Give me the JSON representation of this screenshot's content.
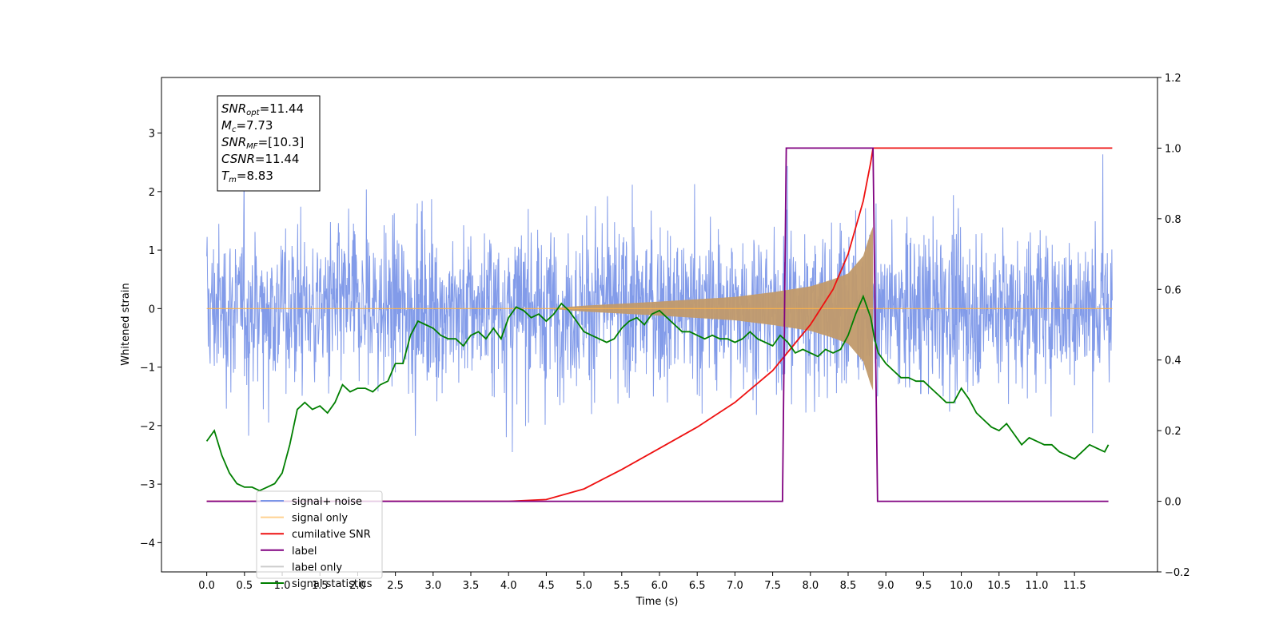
{
  "chart_data": {
    "type": "line",
    "title": "",
    "xlabel": "Time (s)",
    "ylabel": "Whitened strain",
    "y2label": "",
    "xlim": [
      -0.6,
      12.6
    ],
    "ylim": [
      -4.5,
      3.95
    ],
    "y2lim": [
      -0.2,
      1.2
    ],
    "grid": false,
    "legend_position": "bottom-left",
    "x_ticks": [
      "0.0",
      "0.5",
      "1.0",
      "1.5",
      "2.0",
      "2.5",
      "3.0",
      "3.5",
      "4.0",
      "4.5",
      "5.0",
      "5.5",
      "6.0",
      "6.5",
      "7.0",
      "7.5",
      "8.0",
      "8.5",
      "9.0",
      "9.5",
      "10.0",
      "10.5",
      "11.0",
      "11.5"
    ],
    "y_ticks": [
      "3",
      "2",
      "1",
      "0",
      "−1",
      "−2",
      "−3",
      "−4"
    ],
    "y2_ticks": [
      "1.2",
      "1.0",
      "0.8",
      "0.6",
      "0.4",
      "0.2",
      "0.0",
      "−0.2"
    ],
    "annotation": [
      {
        "base": "SNR",
        "sub": "opt",
        "value": "=11.44"
      },
      {
        "base": "M",
        "sub": "c",
        "value": "=7.73"
      },
      {
        "base": "SNR",
        "sub": "MF",
        "value": "=[10.3]"
      },
      {
        "base": "CSNR",
        "sub": "",
        "value": "=11.44"
      },
      {
        "base": "T",
        "sub": "m",
        "value": "=8.83"
      }
    ],
    "series": [
      {
        "name": "signal+ noise",
        "color": "#7b96e8",
        "axis": "left",
        "kind": "noise",
        "x_range": [
          0.0,
          12.0
        ],
        "envelope": [
          [
            -2.6,
            2.7
          ]
        ]
      },
      {
        "name": "signal only",
        "color": "#ffb347",
        "axis": "left",
        "kind": "chirp",
        "x_range": [
          0.0,
          12.0
        ],
        "envelope_x": [
          4.5,
          5.0,
          6.0,
          7.0,
          7.5,
          8.0,
          8.3,
          8.5,
          8.7,
          8.8,
          8.83
        ],
        "envelope_amp": [
          0.0,
          0.05,
          0.12,
          0.2,
          0.28,
          0.38,
          0.5,
          0.6,
          0.9,
          1.3,
          1.4
        ]
      },
      {
        "name": "cumilative SNR",
        "color": "#ee1111",
        "axis": "right",
        "x": [
          0.0,
          4.0,
          4.5,
          5.0,
          5.5,
          6.0,
          6.5,
          7.0,
          7.5,
          8.0,
          8.3,
          8.5,
          8.7,
          8.8,
          8.83,
          12.0
        ],
        "y": [
          0.0,
          0.0,
          0.005,
          0.035,
          0.09,
          0.15,
          0.21,
          0.28,
          0.37,
          0.5,
          0.6,
          0.7,
          0.85,
          0.96,
          1.0,
          1.0
        ]
      },
      {
        "name": "label",
        "color": "#800080",
        "axis": "right",
        "x": [
          0.0,
          7.63,
          7.68,
          8.83,
          8.89,
          11.95
        ],
        "y": [
          0.0,
          0.0,
          1.0,
          1.0,
          0.0,
          0.0
        ]
      },
      {
        "name": "label only",
        "color": "#cccccc",
        "axis": "right",
        "x": [],
        "y": []
      },
      {
        "name": "signal statistics",
        "color": "#007f00",
        "axis": "right",
        "x": [
          0.0,
          0.1,
          0.2,
          0.3,
          0.4,
          0.5,
          0.6,
          0.7,
          0.8,
          0.9,
          1.0,
          1.1,
          1.2,
          1.3,
          1.4,
          1.5,
          1.6,
          1.7,
          1.8,
          1.9,
          2.0,
          2.1,
          2.2,
          2.3,
          2.4,
          2.5,
          2.6,
          2.7,
          2.8,
          2.9,
          3.0,
          3.1,
          3.2,
          3.3,
          3.4,
          3.5,
          3.6,
          3.7,
          3.8,
          3.9,
          4.0,
          4.1,
          4.2,
          4.3,
          4.4,
          4.5,
          4.6,
          4.7,
          4.8,
          4.9,
          5.0,
          5.1,
          5.2,
          5.3,
          5.4,
          5.5,
          5.6,
          5.7,
          5.8,
          5.9,
          6.0,
          6.1,
          6.2,
          6.3,
          6.4,
          6.5,
          6.6,
          6.7,
          6.8,
          6.9,
          7.0,
          7.1,
          7.2,
          7.3,
          7.4,
          7.5,
          7.6,
          7.7,
          7.8,
          7.9,
          8.0,
          8.1,
          8.2,
          8.3,
          8.4,
          8.5,
          8.6,
          8.7,
          8.8,
          8.85,
          8.9,
          9.0,
          9.1,
          9.2,
          9.3,
          9.4,
          9.5,
          9.6,
          9.7,
          9.8,
          9.9,
          10.0,
          10.1,
          10.2,
          10.3,
          10.4,
          10.5,
          10.6,
          10.7,
          10.8,
          10.9,
          11.0,
          11.1,
          11.2,
          11.3,
          11.4,
          11.5,
          11.6,
          11.7,
          11.8,
          11.9,
          11.95
        ],
        "y": [
          0.17,
          0.2,
          0.13,
          0.08,
          0.05,
          0.04,
          0.04,
          0.03,
          0.04,
          0.05,
          0.08,
          0.16,
          0.26,
          0.28,
          0.26,
          0.27,
          0.25,
          0.28,
          0.33,
          0.31,
          0.32,
          0.32,
          0.31,
          0.33,
          0.34,
          0.39,
          0.39,
          0.47,
          0.51,
          0.5,
          0.49,
          0.47,
          0.46,
          0.46,
          0.44,
          0.47,
          0.48,
          0.46,
          0.49,
          0.46,
          0.52,
          0.55,
          0.54,
          0.52,
          0.53,
          0.51,
          0.53,
          0.56,
          0.54,
          0.51,
          0.48,
          0.47,
          0.46,
          0.45,
          0.46,
          0.49,
          0.51,
          0.52,
          0.5,
          0.53,
          0.54,
          0.52,
          0.5,
          0.48,
          0.48,
          0.47,
          0.46,
          0.47,
          0.46,
          0.46,
          0.45,
          0.46,
          0.48,
          0.46,
          0.45,
          0.44,
          0.47,
          0.45,
          0.42,
          0.43,
          0.42,
          0.41,
          0.43,
          0.42,
          0.43,
          0.47,
          0.53,
          0.58,
          0.52,
          0.46,
          0.42,
          0.39,
          0.37,
          0.35,
          0.35,
          0.34,
          0.34,
          0.32,
          0.3,
          0.28,
          0.28,
          0.32,
          0.29,
          0.25,
          0.23,
          0.21,
          0.2,
          0.22,
          0.19,
          0.16,
          0.18,
          0.17,
          0.16,
          0.16,
          0.14,
          0.13,
          0.12,
          0.14,
          0.16,
          0.15,
          0.14,
          0.16
        ]
      }
    ]
  }
}
